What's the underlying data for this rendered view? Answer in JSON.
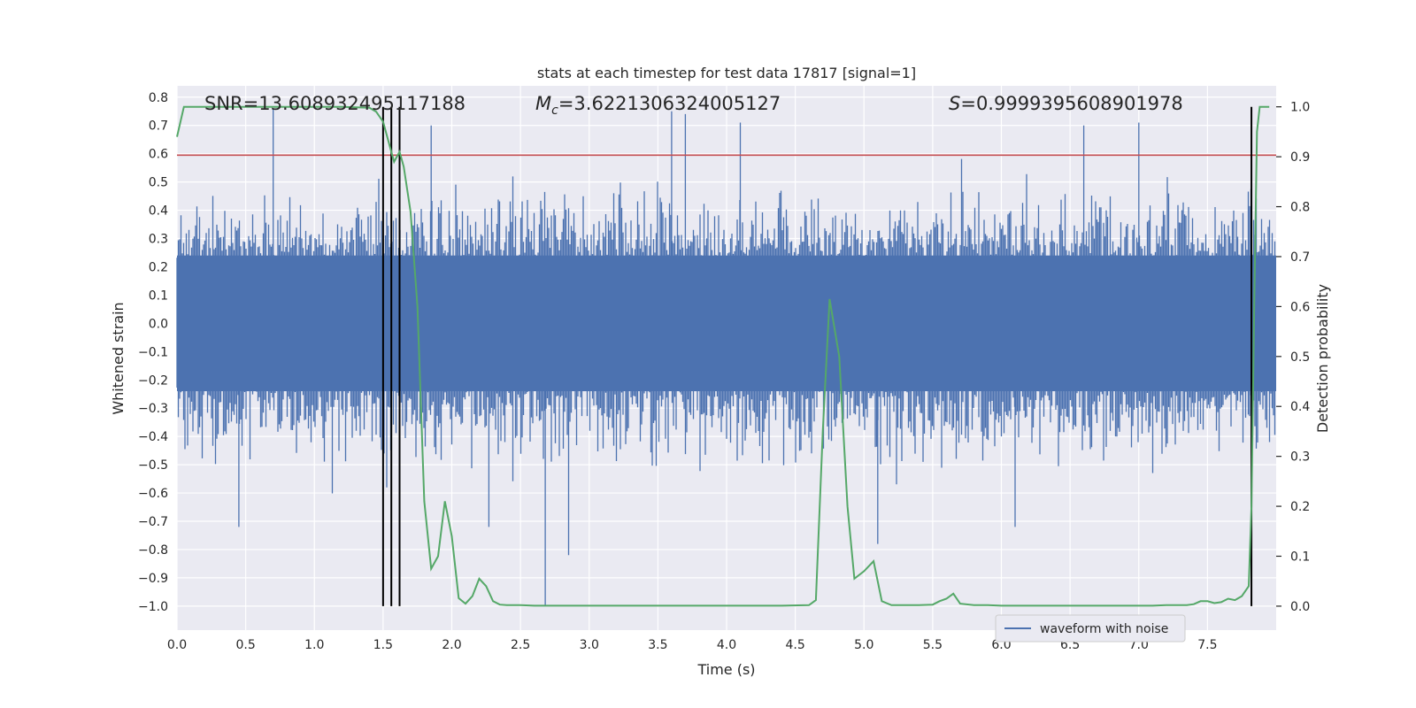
{
  "chart_data": {
    "type": "line",
    "title": "stats at each timestep for test data 17817 [signal=1]",
    "xlabel": "Time (s)",
    "ylabel_left": "Whitened strain",
    "ylabel_right": "Detection probability",
    "xlim": [
      0.0,
      8.0
    ],
    "ylim_left": [
      -1.085,
      0.84
    ],
    "ylim_right": [
      -0.048,
      1.042
    ],
    "x_ticks": [
      "0.0",
      "0.5",
      "1.0",
      "1.5",
      "2.0",
      "2.5",
      "3.0",
      "3.5",
      "4.0",
      "4.5",
      "5.0",
      "5.5",
      "6.0",
      "6.5",
      "7.0",
      "7.5"
    ],
    "x_tick_values": [
      0.0,
      0.5,
      1.0,
      1.5,
      2.0,
      2.5,
      3.0,
      3.5,
      4.0,
      4.5,
      5.0,
      5.5,
      6.0,
      6.5,
      7.0,
      7.5
    ],
    "y_left_ticks": [
      "0.8",
      "0.7",
      "0.6",
      "0.5",
      "0.4",
      "0.3",
      "0.2",
      "0.1",
      "0.0",
      "-0.1",
      "-0.2",
      "-0.3",
      "-0.4",
      "-0.5",
      "-0.6",
      "-0.7",
      "-0.8",
      "-0.9",
      "-1.0"
    ],
    "y_left_tick_values": [
      0.8,
      0.7,
      0.6,
      0.5,
      0.4,
      0.3,
      0.2,
      0.1,
      0.0,
      -0.1,
      -0.2,
      -0.3,
      -0.4,
      -0.5,
      -0.6,
      -0.7,
      -0.8,
      -0.9,
      -1.0
    ],
    "y_right_ticks": [
      "1.0",
      "0.9",
      "0.8",
      "0.7",
      "0.6",
      "0.5",
      "0.4",
      "0.3",
      "0.2",
      "0.1",
      "0.0"
    ],
    "y_right_tick_values": [
      1.0,
      0.9,
      0.8,
      0.7,
      0.6,
      0.5,
      0.4,
      0.3,
      0.2,
      0.1,
      0.0
    ],
    "annotations": {
      "snr": "SNR=13.608932495117188",
      "mc_symbol": "M",
      "mc_sub": "c",
      "mc_value": "=3.6221306324005127",
      "s_symbol": "S",
      "s_value": "=0.9999395608901978"
    },
    "threshold_line": {
      "y": 0.595,
      "color": "#c44e52"
    },
    "vertical_lines": [
      1.5,
      1.56,
      1.62,
      7.82
    ],
    "waveform": {
      "name": "waveform with noise",
      "color": "#4c72b0",
      "core_amplitude": 0.24,
      "typical_peak": 0.4,
      "max_positive": 0.76,
      "min_negative": -1.0
    },
    "detection_probability": {
      "color": "#55a868",
      "x": [
        0.0,
        0.05,
        0.1,
        0.2,
        0.3,
        0.4,
        0.5,
        0.6,
        0.7,
        0.8,
        0.9,
        1.0,
        1.1,
        1.2,
        1.3,
        1.4,
        1.45,
        1.5,
        1.55,
        1.58,
        1.6,
        1.62,
        1.65,
        1.7,
        1.75,
        1.8,
        1.85,
        1.9,
        1.95,
        2.0,
        2.05,
        2.1,
        2.15,
        2.2,
        2.25,
        2.3,
        2.35,
        2.4,
        2.5,
        2.6,
        2.7,
        2.8,
        3.0,
        3.2,
        3.4,
        3.5,
        3.6,
        3.8,
        4.0,
        4.2,
        4.4,
        4.6,
        4.65,
        4.7,
        4.75,
        4.82,
        4.88,
        4.93,
        5.0,
        5.07,
        5.13,
        5.2,
        5.3,
        5.4,
        5.5,
        5.55,
        5.6,
        5.65,
        5.7,
        5.8,
        5.9,
        6.0,
        6.1,
        6.2,
        6.4,
        6.6,
        6.8,
        7.0,
        7.1,
        7.2,
        7.3,
        7.35,
        7.4,
        7.45,
        7.5,
        7.55,
        7.6,
        7.65,
        7.7,
        7.75,
        7.8,
        7.82,
        7.84,
        7.86,
        7.88,
        7.9,
        7.95
      ],
      "y": [
        0.94,
        1.0,
        1.0,
        1.0,
        1.0,
        1.0,
        1.0,
        1.0,
        1.0,
        1.0,
        1.0,
        1.0,
        1.0,
        1.0,
        0.999,
        0.998,
        0.99,
        0.97,
        0.92,
        0.89,
        0.9,
        0.91,
        0.88,
        0.79,
        0.6,
        0.21,
        0.075,
        0.1,
        0.21,
        0.14,
        0.016,
        0.005,
        0.02,
        0.055,
        0.04,
        0.01,
        0.003,
        0.002,
        0.002,
        0.001,
        0.001,
        0.001,
        0.001,
        0.001,
        0.001,
        0.001,
        0.001,
        0.001,
        0.001,
        0.001,
        0.001,
        0.002,
        0.012,
        0.35,
        0.615,
        0.5,
        0.2,
        0.055,
        0.07,
        0.09,
        0.01,
        0.002,
        0.002,
        0.002,
        0.003,
        0.01,
        0.015,
        0.025,
        0.005,
        0.002,
        0.002,
        0.001,
        0.001,
        0.001,
        0.001,
        0.001,
        0.001,
        0.001,
        0.001,
        0.002,
        0.002,
        0.002,
        0.004,
        0.01,
        0.01,
        0.006,
        0.008,
        0.015,
        0.012,
        0.02,
        0.04,
        0.2,
        0.6,
        0.95,
        1.0,
        1.0,
        1.0
      ]
    },
    "legend": {
      "label": "waveform with noise",
      "placement": "lower-right"
    }
  }
}
